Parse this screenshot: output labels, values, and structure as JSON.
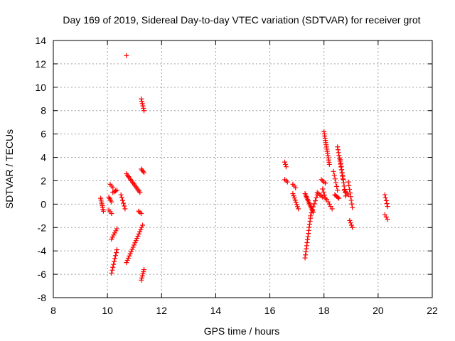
{
  "chart_data": {
    "type": "scatter",
    "title": "Day 169 of 2019, Sidereal Day-to-day VTEC variation (SDTVAR) for receiver grot",
    "xlabel": "GPS time / hours",
    "ylabel": "SDTVAR / TECUs",
    "xlim": [
      8,
      22
    ],
    "ylim": [
      -8,
      14
    ],
    "xticks": [
      8,
      10,
      12,
      14,
      16,
      18,
      20,
      22
    ],
    "yticks": [
      -8,
      -6,
      -4,
      -2,
      0,
      2,
      4,
      6,
      8,
      10,
      12,
      14
    ],
    "grid": true,
    "marker": "+",
    "color": "#ff0000",
    "segments": [
      {
        "x0": 9.75,
        "x1": 9.85,
        "y0": 0.5,
        "y1": -0.6,
        "n": 8
      },
      {
        "x0": 10.05,
        "x1": 10.15,
        "y0": 0.6,
        "y1": 0.2,
        "n": 4
      },
      {
        "x0": 10.05,
        "x1": 10.15,
        "y0": -0.5,
        "y1": -0.8,
        "n": 3
      },
      {
        "x0": 10.1,
        "x1": 10.2,
        "y0": 1.7,
        "y1": 1.4,
        "n": 3
      },
      {
        "x0": 10.2,
        "x1": 10.35,
        "y0": 1.0,
        "y1": 1.2,
        "n": 4
      },
      {
        "x0": 10.15,
        "x1": 10.35,
        "y0": -3.0,
        "y1": -2.1,
        "n": 6
      },
      {
        "x0": 10.15,
        "x1": 10.35,
        "y0": -5.9,
        "y1": -3.9,
        "n": 9
      },
      {
        "x0": 10.5,
        "x1": 10.65,
        "y0": 0.8,
        "y1": -0.4,
        "n": 6
      },
      {
        "x0": 10.7,
        "x1": 10.7,
        "y0": 12.7,
        "y1": 12.7,
        "n": 1
      },
      {
        "x0": 10.7,
        "x1": 11.2,
        "y0": 2.6,
        "y1": 1.0,
        "n": 14
      },
      {
        "x0": 10.7,
        "x1": 11.3,
        "y0": -5.0,
        "y1": -1.8,
        "n": 18
      },
      {
        "x0": 11.15,
        "x1": 11.25,
        "y0": -0.6,
        "y1": -0.8,
        "n": 3
      },
      {
        "x0": 11.25,
        "x1": 11.35,
        "y0": 9.0,
        "y1": 8.0,
        "n": 6
      },
      {
        "x0": 11.25,
        "x1": 11.35,
        "y0": 3.0,
        "y1": 2.7,
        "n": 4
      },
      {
        "x0": 11.25,
        "x1": 11.35,
        "y0": -6.5,
        "y1": -5.6,
        "n": 6
      },
      {
        "x0": 16.55,
        "x1": 16.6,
        "y0": 3.6,
        "y1": 3.2,
        "n": 3
      },
      {
        "x0": 16.55,
        "x1": 16.65,
        "y0": 2.1,
        "y1": 1.9,
        "n": 3
      },
      {
        "x0": 16.85,
        "x1": 16.95,
        "y0": 1.7,
        "y1": 1.4,
        "n": 3
      },
      {
        "x0": 16.85,
        "x1": 17.05,
        "y0": 0.9,
        "y1": -0.4,
        "n": 8
      },
      {
        "x0": 17.3,
        "x1": 17.5,
        "y0": -4.6,
        "y1": -1.2,
        "n": 14
      },
      {
        "x0": 17.3,
        "x1": 17.6,
        "y0": 0.9,
        "y1": -0.7,
        "n": 14
      },
      {
        "x0": 17.5,
        "x1": 17.75,
        "y0": -1.0,
        "y1": 0.8,
        "n": 8
      },
      {
        "x0": 17.75,
        "x1": 17.95,
        "y0": 1.0,
        "y1": 0.6,
        "n": 5
      },
      {
        "x0": 17.9,
        "x1": 18.05,
        "y0": 2.1,
        "y1": 1.8,
        "n": 4
      },
      {
        "x0": 17.95,
        "x1": 18.05,
        "y0": 1.3,
        "y1": 0.5,
        "n": 4
      },
      {
        "x0": 18.0,
        "x1": 18.2,
        "y0": 6.2,
        "y1": 3.4,
        "n": 16
      },
      {
        "x0": 18.1,
        "x1": 18.3,
        "y0": 0.4,
        "y1": -0.4,
        "n": 5
      },
      {
        "x0": 18.35,
        "x1": 18.5,
        "y0": 2.8,
        "y1": 1.2,
        "n": 6
      },
      {
        "x0": 18.4,
        "x1": 18.55,
        "y0": 0.8,
        "y1": 0.5,
        "n": 5
      },
      {
        "x0": 18.5,
        "x1": 18.7,
        "y0": 4.9,
        "y1": 2.2,
        "n": 12
      },
      {
        "x0": 18.6,
        "x1": 18.8,
        "y0": 3.8,
        "y1": 0.7,
        "n": 12
      },
      {
        "x0": 18.75,
        "x1": 18.9,
        "y0": 1.2,
        "y1": 0.8,
        "n": 4
      },
      {
        "x0": 18.9,
        "x1": 19.05,
        "y0": 1.9,
        "y1": -0.3,
        "n": 8
      },
      {
        "x0": 18.95,
        "x1": 19.05,
        "y0": -1.4,
        "y1": -2.0,
        "n": 4
      },
      {
        "x0": 20.25,
        "x1": 20.35,
        "y0": 0.8,
        "y1": -0.2,
        "n": 5
      },
      {
        "x0": 20.25,
        "x1": 20.35,
        "y0": -0.9,
        "y1": -1.3,
        "n": 3
      }
    ]
  }
}
